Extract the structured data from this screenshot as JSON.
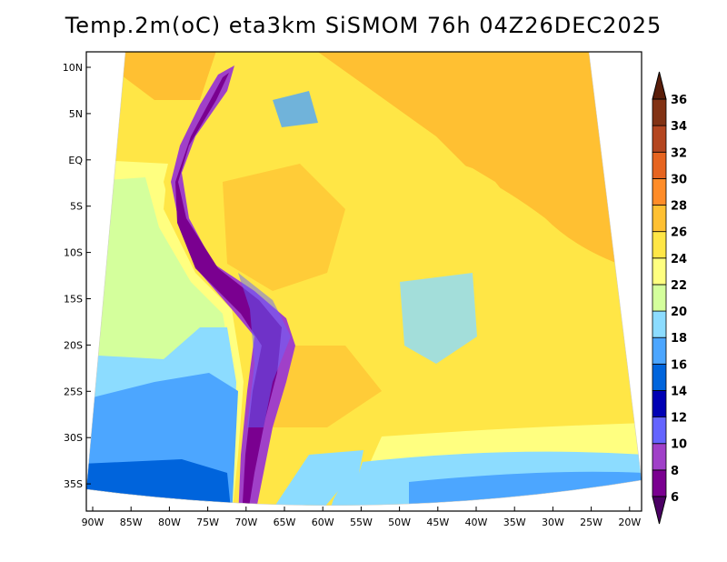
{
  "title": "Temp.2m(oC) eta3km SiSMOM 76h 04Z26DEC2025",
  "lat_labels": [
    "10N",
    "5N",
    "EQ",
    "5S",
    "10S",
    "15S",
    "20S",
    "25S",
    "30S",
    "35S"
  ],
  "lon_labels": [
    "90W",
    "85W",
    "80W",
    "75W",
    "70W",
    "65W",
    "60W",
    "55W",
    "50W",
    "45W",
    "40W",
    "35W",
    "30W",
    "25W",
    "20W"
  ],
  "colorbar": {
    "levels": [
      6,
      8,
      10,
      12,
      14,
      16,
      18,
      20,
      22,
      24,
      26,
      28,
      30,
      32,
      34,
      36
    ],
    "level_labels": [
      "6",
      "8",
      "10",
      "12",
      "14",
      "16",
      "18",
      "20",
      "22",
      "24",
      "26",
      "28",
      "30",
      "32",
      "34",
      "36"
    ],
    "colors": [
      "#7a0090",
      "#a040c8",
      "#6464ff",
      "#0000b4",
      "#0064dc",
      "#4ca6ff",
      "#8cdcff",
      "#d4ff9c",
      "#ffff80",
      "#ffe646",
      "#ffc032",
      "#ff8c28",
      "#e66420",
      "#b44620",
      "#823214"
    ],
    "under_color": "#4b0064",
    "over_color": "#5a1e0a"
  }
}
